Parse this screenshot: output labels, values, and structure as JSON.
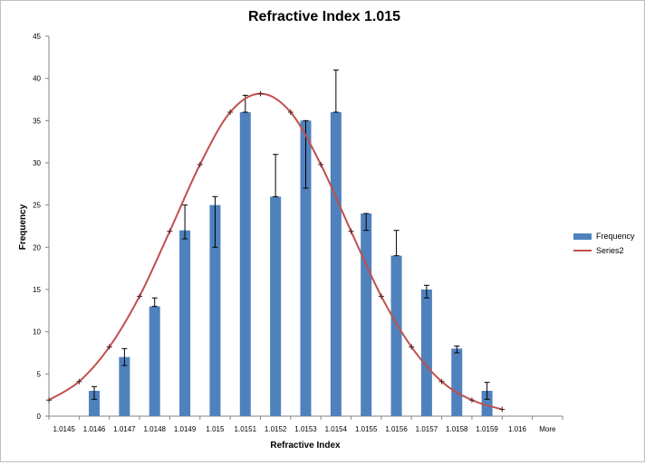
{
  "chart_data": {
    "type": "bar",
    "title": "Refractive Index 1.015",
    "xlabel": "Refractive Index",
    "ylabel": "Frequency",
    "ylim": [
      0,
      45
    ],
    "yticks": [
      0,
      5,
      10,
      15,
      20,
      25,
      30,
      35,
      40,
      45
    ],
    "categories": [
      "1.0145",
      "1.0146",
      "1.0147",
      "1.0148",
      "1.0149",
      "1.015",
      "1.0151",
      "1.0152",
      "1.0153",
      "1.0154",
      "1.0155",
      "1.0156",
      "1.0157",
      "1.0158",
      "1.0159",
      "1.016",
      "More"
    ],
    "grid": false,
    "legend_position": "right",
    "series": [
      {
        "name": "Frequency",
        "kind": "bar",
        "color": "#4f81bd",
        "values": [
          0,
          3,
          7,
          13,
          22,
          25,
          36,
          26,
          35,
          36,
          24,
          19,
          15,
          8,
          3,
          0,
          0
        ],
        "error_plus": [
          0,
          0.5,
          1,
          1,
          3,
          1,
          2,
          5,
          0,
          5,
          0,
          3,
          0.5,
          0.3,
          1,
          0,
          0
        ],
        "error_minus": [
          0,
          1,
          1,
          0,
          1,
          5,
          0,
          0,
          8,
          0,
          2,
          0,
          1,
          0.5,
          1,
          0,
          0
        ]
      },
      {
        "name": "Series2",
        "kind": "line",
        "color": "#c0504d",
        "values": [
          1.9,
          4.1,
          8.2,
          14.2,
          21.9,
          29.8,
          36.0,
          38.2,
          36.0,
          29.8,
          21.9,
          14.2,
          8.2,
          4.1,
          1.9,
          0.8,
          null
        ]
      }
    ]
  }
}
